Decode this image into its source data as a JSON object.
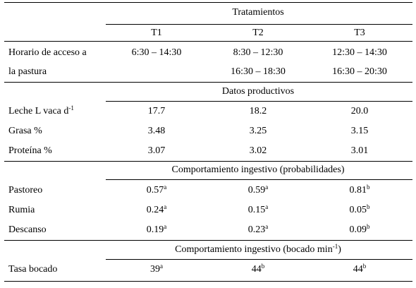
{
  "header": {
    "title": "Tratamientos",
    "columns": [
      "T1",
      "T2",
      "T3"
    ]
  },
  "access": {
    "label_line1": "Horario de acceso a",
    "label_line2": "la pastura",
    "t1": "6:30 – 14:30",
    "t2_line1": "8:30 – 12:30",
    "t2_line2": "16:30 – 18:30",
    "t3_line1": "12:30 – 14:30",
    "t3_line2": "16:30 – 20:30"
  },
  "productive": {
    "title": "Datos productivos",
    "rows": [
      {
        "label": "Leche L vaca d",
        "label_sup": "-1",
        "t1": "17.7",
        "t2": "18.2",
        "t3": "20.0"
      },
      {
        "label": "Grasa %",
        "t1": "3.48",
        "t2": "3.25",
        "t3": "3.15"
      },
      {
        "label": "Proteína %",
        "t1": "3.07",
        "t2": "3.02",
        "t3": "3.01"
      }
    ]
  },
  "behavior_prob": {
    "title": "Comportamiento ingestivo (probabilidades)",
    "rows": [
      {
        "label": "Pastoreo",
        "t1": "0.57",
        "t1_sup": "a",
        "t2": "0.59",
        "t2_sup": "a",
        "t3": "0.81",
        "t3_sup": "b"
      },
      {
        "label": "Rumia",
        "t1": "0.24",
        "t1_sup": "a",
        "t2": "0.15",
        "t2_sup": "a",
        "t3": "0.05",
        "t3_sup": "b"
      },
      {
        "label": "Descanso",
        "t1": "0.19",
        "t1_sup": "a",
        "t2": "0.23",
        "t2_sup": "a",
        "t3": "0.09",
        "t3_sup": "b"
      }
    ]
  },
  "behavior_bite": {
    "title_pre": "Comportamiento ingestivo (bocado min",
    "title_sup": "-1",
    "title_post": ")",
    "rows": [
      {
        "label": "Tasa bocado",
        "t1": "39",
        "t1_sup": "a",
        "t2": "44",
        "t2_sup": "b",
        "t3": "44",
        "t3_sup": "b"
      }
    ]
  }
}
